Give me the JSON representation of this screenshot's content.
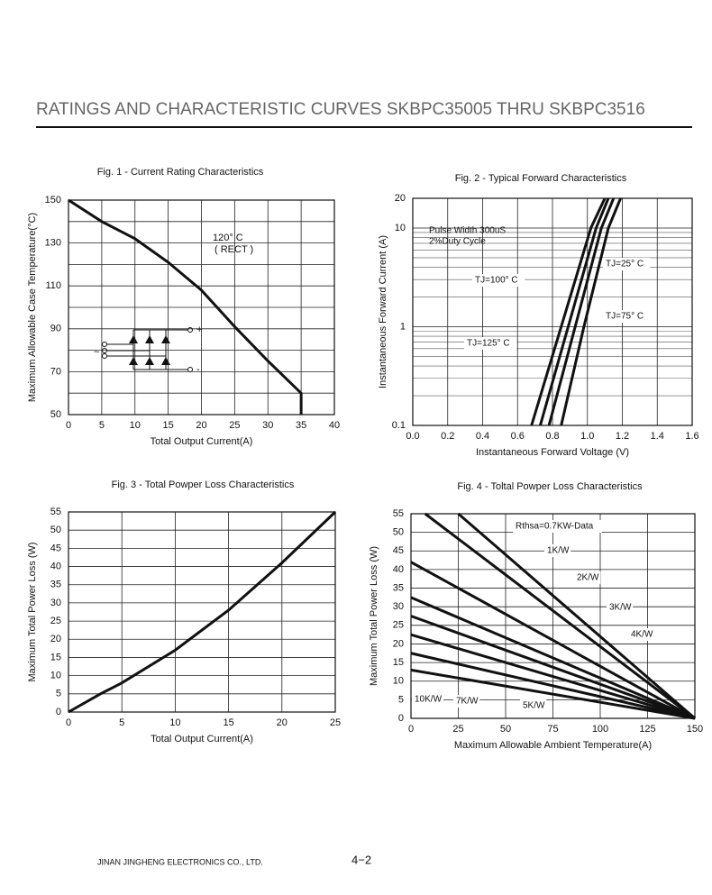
{
  "header": {
    "title": "RATINGS AND CHARACTERISTIC CURVES SKBPC35005  THRU  SKBPC3516"
  },
  "footer": {
    "company": "JINAN JINGHENG  ELECTRONICS   CO., LTD.",
    "page": "4−2"
  },
  "chart_data": [
    {
      "type": "line",
      "title": "Fig. 1 - Current Rating Characteristics",
      "x_label": "Total Output Current(A)",
      "y_label": "Maximum Allowable Case Temperature(°C)",
      "xlim": [
        0,
        40
      ],
      "xticks": [
        0,
        5,
        10,
        15,
        20,
        25,
        30,
        35,
        40
      ],
      "ylim": [
        50,
        150
      ],
      "yticks": [
        50,
        70,
        90,
        110,
        130,
        150
      ],
      "grid": true,
      "annotations": [
        "120° C",
        "( RECT )",
        "~",
        "+",
        "-"
      ],
      "series": [
        {
          "x": [
            0,
            5,
            10,
            15,
            20,
            25,
            30,
            35,
            35
          ],
          "values": [
            150,
            140,
            132,
            121,
            108,
            91,
            75,
            60,
            50
          ],
          "color": "#111111"
        }
      ]
    },
    {
      "type": "line",
      "title": "Fig. 2 - Typical Forward Characteristics",
      "x_label": "Instantaneous Forward Voltage (V)",
      "y_label": "Instantaneous Forward Current (A)",
      "log_y": true,
      "xlim": [
        0,
        1.6
      ],
      "xticks": [
        {
          "value": 0,
          "label": "0.0"
        },
        0.2,
        0.4,
        0.6,
        0.8,
        {
          "value": 1,
          "label": "1.0"
        },
        1.2,
        1.4,
        1.6
      ],
      "ylim": [
        0.1,
        20
      ],
      "yticks": [
        0.1,
        1,
        10,
        20
      ],
      "grid": true,
      "annotations": [
        "Pulse Width 300uS",
        "2%Duty Cycle"
      ],
      "series": [
        {
          "name": "TJ=25° C",
          "x": [
            0.85,
            0.98,
            1.12,
            1.19
          ],
          "values": [
            0.1,
            1,
            10,
            20
          ],
          "color": "#111111"
        },
        {
          "name": "TJ=100° C",
          "x": [
            0.73,
            0.89,
            1.05,
            1.12
          ],
          "values": [
            0.1,
            1,
            10,
            20
          ],
          "color": "#111111"
        },
        {
          "name": "TJ=75° C",
          "x": [
            0.78,
            0.93,
            1.08,
            1.15
          ],
          "values": [
            0.1,
            1,
            10,
            20
          ],
          "color": "#111111"
        },
        {
          "name": "TJ=125° C",
          "x": [
            0.68,
            0.85,
            1.02,
            1.1
          ],
          "values": [
            0.1,
            1,
            10,
            20
          ],
          "color": "#111111"
        }
      ]
    },
    {
      "type": "line",
      "title": "Fig. 3 - Total Powper Loss Characteristics",
      "x_label": "Total Output Current(A)",
      "y_label": "Maximum Total Power  Loss (W)",
      "xlim": [
        0,
        25
      ],
      "xticks": [
        0,
        5,
        10,
        15,
        20,
        25
      ],
      "ylim": [
        0,
        55
      ],
      "yticks": [
        0,
        5,
        10,
        15,
        20,
        25,
        30,
        35,
        40,
        45,
        50,
        55
      ],
      "grid": true,
      "series": [
        {
          "x": [
            0,
            3,
            5,
            10,
            15,
            20,
            25
          ],
          "values": [
            0,
            5,
            8,
            17,
            28,
            41,
            55
          ],
          "color": "#111111"
        }
      ]
    },
    {
      "type": "line",
      "title": "Fig. 4 - Toltal Powper Loss Characteristics",
      "x_label": "Maximum Allowable Ambient Temperature(A)",
      "y_label": "Maximum Total Power  Loss (W)",
      "xlim": [
        0,
        150
      ],
      "xticks": [
        0,
        25,
        50,
        75,
        100,
        125,
        150
      ],
      "ylim": [
        0,
        55
      ],
      "yticks": [
        0,
        5,
        10,
        15,
        20,
        25,
        30,
        35,
        40,
        45,
        50,
        55
      ],
      "grid": true,
      "series": [
        {
          "name": "Rthsa=0.7KW-Data",
          "x": [
            7.5,
            150
          ],
          "values": [
            55,
            0
          ],
          "color": "#111111"
        },
        {
          "name": "1K/W",
          "x": [
            25,
            150
          ],
          "values": [
            55,
            0
          ],
          "color": "#111111"
        },
        {
          "name": "2K/W",
          "x": [
            0,
            150
          ],
          "values": [
            42,
            0
          ],
          "color": "#111111"
        },
        {
          "name": "3K/W",
          "x": [
            0,
            150
          ],
          "values": [
            32.5,
            0
          ],
          "color": "#111111"
        },
        {
          "name": "4K/W",
          "x": [
            0,
            150
          ],
          "values": [
            27.5,
            0
          ],
          "color": "#111111"
        },
        {
          "name": "5K/W",
          "x": [
            0,
            150
          ],
          "values": [
            22.5,
            0
          ],
          "color": "#111111"
        },
        {
          "name": "7K/W",
          "x": [
            0,
            150
          ],
          "values": [
            17.5,
            0
          ],
          "color": "#111111"
        },
        {
          "name": "10K/W",
          "x": [
            0,
            150
          ],
          "values": [
            13,
            0
          ],
          "color": "#111111"
        }
      ]
    }
  ]
}
